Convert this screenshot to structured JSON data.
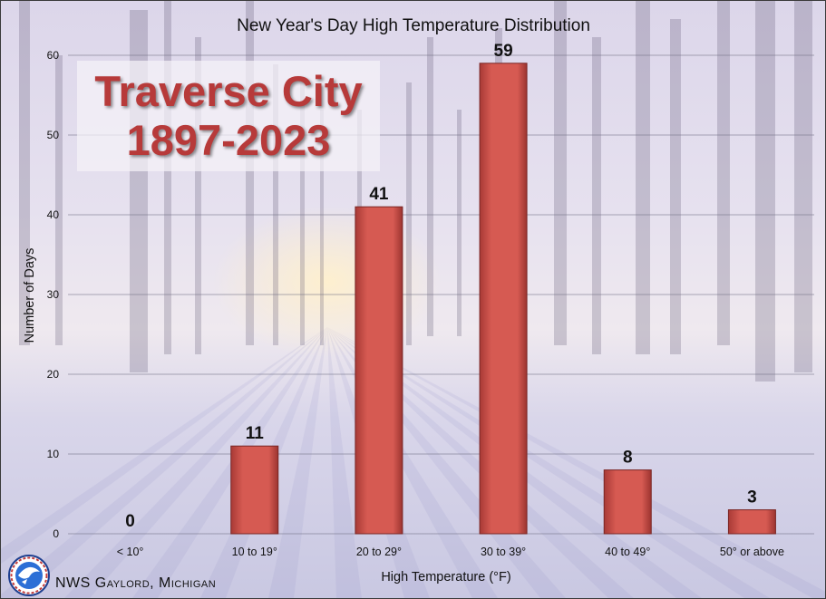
{
  "chart_data": {
    "type": "bar",
    "title": "New Year's Day High Temperature Distribution",
    "xlabel": "High Temperature (°F)",
    "ylabel": "Number of Days",
    "categories": [
      "< 10°",
      "10 to 19°",
      "20 to 29°",
      "30 to 39°",
      "40 to 49°",
      "50° or above"
    ],
    "values": [
      0,
      11,
      41,
      59,
      8,
      3
    ],
    "ylim": [
      0,
      60
    ],
    "yticks": [
      0,
      10,
      20,
      30,
      40,
      50,
      60
    ],
    "grid": true,
    "bar_color": "#d65a52",
    "annotation": {
      "line1": "Traverse City",
      "line2": "1897-2023",
      "color": "#b73a3a"
    }
  },
  "footer": {
    "credit": "NWS Gaylord, Michigan",
    "logo_text": "NATIONAL WEATHER SERVICE"
  }
}
